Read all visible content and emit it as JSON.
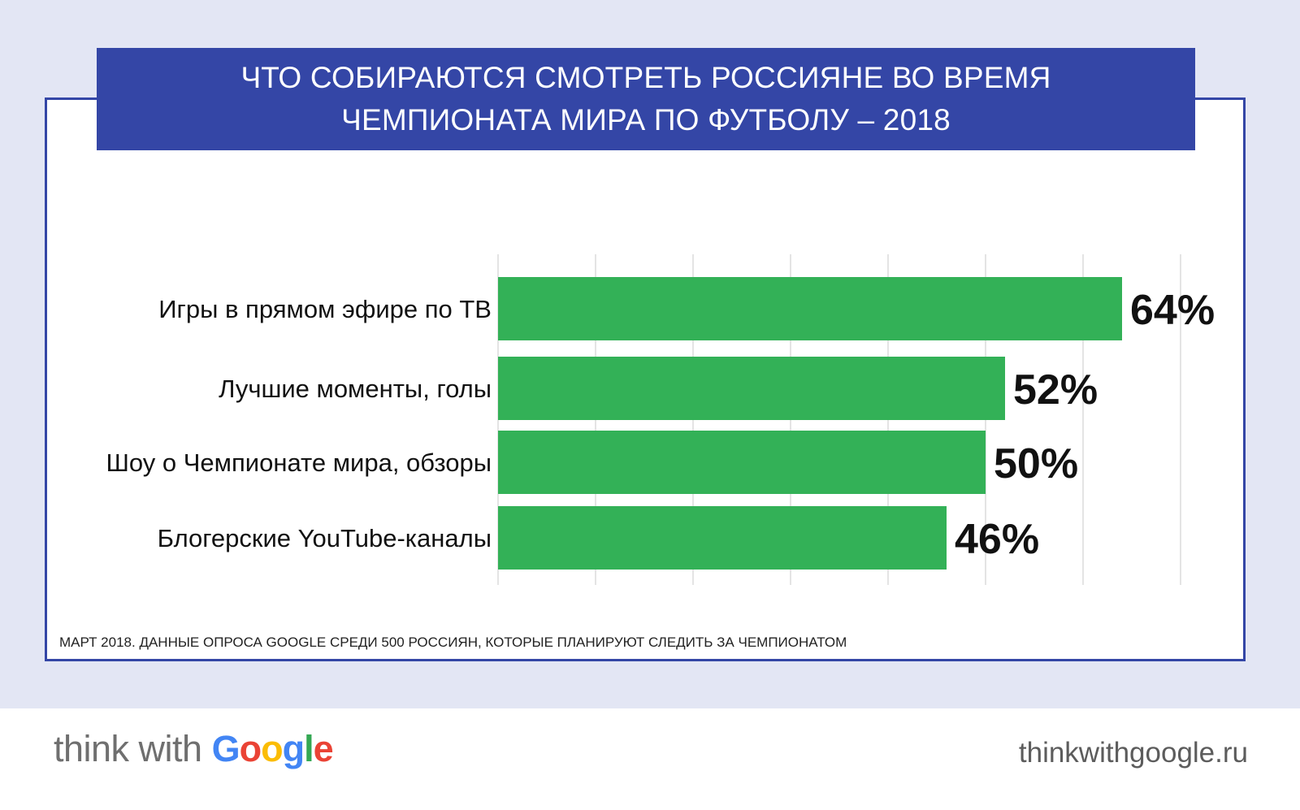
{
  "header": {
    "title_line1": "ЧТО СОБИРАЮТСЯ СМОТРЕТЬ РОССИЯНЕ ВО ВРЕМЯ",
    "title_line2": "ЧЕМПИОНАТА МИРА ПО ФУТБОЛУ – 2018"
  },
  "footnote": "МАРТ 2018. ДАННЫЕ ОПРОСА GOOGLE СРЕДИ 500 РОССИЯН, КОТОРЫЕ ПЛАНИРУЮТ СЛЕДИТЬ ЗА ЧЕМПИОНАТОМ",
  "footer": {
    "logo_prefix": "think with",
    "logo_google": "Google",
    "url": "thinkwithgoogle.ru"
  },
  "colors": {
    "background": "#e3e6f4",
    "banner": "#3446a6",
    "bar": "#33b157",
    "grid": "#dcdcdc",
    "google_blue": "#4285f4",
    "google_red": "#ea4335",
    "google_yellow": "#fbbc05",
    "google_green": "#34a853"
  },
  "chart_data": {
    "type": "bar",
    "orientation": "horizontal",
    "title": "ЧТО СОБИРАЮТСЯ СМОТРЕТЬ РОССИЯНЕ ВО ВРЕМЯ ЧЕМПИОНАТА МИРА ПО ФУТБОЛУ – 2018",
    "categories": [
      "Игры в прямом эфире по ТВ",
      "Лучшие моменты, голы",
      "Шоу о Чемпионате мира, обзоры",
      "Блогерские YouTube-каналы"
    ],
    "values": [
      64,
      52,
      50,
      46
    ],
    "value_labels": [
      "64%",
      "52%",
      "50%",
      "46%"
    ],
    "xlim": [
      0,
      70
    ],
    "grid_step": 10,
    "grid": true,
    "legend": "none"
  }
}
